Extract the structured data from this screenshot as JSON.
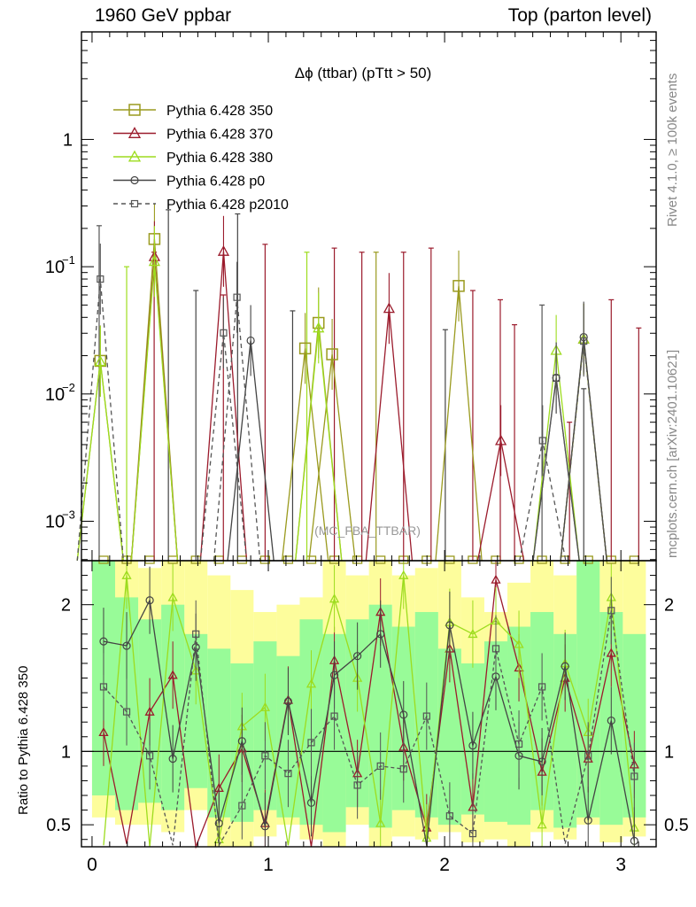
{
  "header": {
    "left": "1960 GeV ppbar",
    "right": "Top (parton level)"
  },
  "side": {
    "rivet": "Rivet 4.1.0, ≥ 100k events",
    "mcplots": "mcplots.cern.ch [arXiv:2401.10621]"
  },
  "chart_data": {
    "type": "line",
    "title": "Δϕ (ttbar) (pTtt > 50)",
    "watermark": "(MC_FBA_TTBAR)",
    "xlabel": "",
    "ylabel": "",
    "ratio_ylabel": "Ratio to Pythia 6.428 350",
    "x_range": [
      -0.06,
      3.2
    ],
    "y_range": [
      0.00049,
      7
    ],
    "y_scale": "log",
    "ratio_range": [
      0.35,
      2.3
    ],
    "x_ticks": [
      {
        "v": 0,
        "label": "0"
      },
      {
        "v": 1,
        "label": "1"
      },
      {
        "v": 2,
        "label": "2"
      },
      {
        "v": 3,
        "label": "3"
      }
    ],
    "y_ticks": [
      {
        "exp": 0,
        "label": "1"
      },
      {
        "exp": -1,
        "label": "10",
        "sup": "−1"
      },
      {
        "exp": -2,
        "label": "10",
        "sup": "−2"
      },
      {
        "exp": -3,
        "label": "10",
        "sup": "−3"
      }
    ],
    "ratio_ticks": [
      {
        "v": 0.5,
        "label": "0.5"
      },
      {
        "v": 1,
        "label": "1"
      },
      {
        "v": 2,
        "label": "2"
      }
    ],
    "legend_position": "top-left",
    "series": [
      {
        "name": "Pythia 6.428 350",
        "color": "#9a9a1e",
        "marker": "square",
        "dash": "",
        "points": [
          [
            0.047,
            0.0182
          ],
          [
            0.354,
            0.165
          ],
          [
            1.209,
            0.0228
          ],
          [
            1.285,
            0.0362
          ],
          [
            1.362,
            0.0205
          ],
          [
            2.08,
            0.0706
          ]
        ]
      },
      {
        "name": "Pythia 6.428 370",
        "color": "#9b1b2c",
        "marker": "triangle",
        "dash": "",
        "points": [
          [
            0.354,
            0.12
          ],
          [
            0.746,
            0.132
          ],
          [
            1.685,
            0.047
          ],
          [
            2.319,
            0.0043
          ],
          [
            2.789,
            0.027
          ]
        ]
      },
      {
        "name": "Pythia 6.428 380",
        "color": "#9ddc1e",
        "marker": "triangle",
        "dash": "",
        "points": [
          [
            0.047,
            0.018
          ],
          [
            0.354,
            0.11
          ],
          [
            1.285,
            0.033
          ],
          [
            2.633,
            0.022
          ],
          [
            2.789,
            0.027
          ]
        ]
      },
      {
        "name": "Pythia 6.428 p0",
        "color": "#444444",
        "marker": "circle",
        "dash": "",
        "points": [
          [
            0.9,
            0.0263
          ],
          [
            2.633,
            0.0134
          ],
          [
            2.789,
            0.028
          ]
        ]
      },
      {
        "name": "Pythia 6.428 p2010",
        "color": "#555555",
        "marker": "square-small",
        "dash": "5,4",
        "points": [
          [
            0.047,
            0.08
          ],
          [
            0.746,
            0.0302
          ],
          [
            0.822,
            0.0575
          ],
          [
            2.556,
            0.0043
          ],
          [
            2.633,
            0.0133
          ],
          [
            2.789,
            0.026
          ]
        ]
      }
    ],
    "ratio_series": [
      {
        "name": "Pythia 6.428 370",
        "values": [
          1.13,
          0.37,
          1.27,
          1.52,
          0.35,
          0.75,
          1.02,
          0.51,
          1.35,
          0.35,
          1.62,
          0.85,
          1.95,
          1.03,
          0.48,
          1.7,
          0.62,
          2.17,
          1.57,
          0.86,
          1.5,
          0.95,
          1.67,
          0.91
        ]
      },
      {
        "name": "Pythia 6.428 380",
        "values": [
          0.36,
          2.2,
          0.35,
          2.05,
          1.55,
          0.4,
          1.17,
          1.3,
          0.36,
          1.46,
          2.04,
          1.5,
          0.51,
          2.2,
          0.41,
          1.88,
          1.8,
          1.89,
          1.73,
          0.5,
          1.6,
          1.13,
          2.05,
          0.48
        ]
      },
      {
        "name": "Pythia 6.428 p0",
        "values": [
          1.75,
          1.72,
          2.03,
          0.95,
          1.71,
          0.51,
          1.07,
          0.49,
          1.34,
          0.65,
          1.52,
          1.65,
          1.8,
          1.25,
          0.36,
          1.86,
          1.04,
          1.51,
          0.97,
          0.93,
          1.58,
          0.53,
          1.21,
          0.39
        ]
      },
      {
        "name": "Pythia 6.428 p2010",
        "values": [
          1.44,
          1.27,
          0.97,
          0.36,
          1.8,
          0.36,
          0.63,
          0.97,
          0.85,
          1.06,
          1.24,
          0.77,
          0.9,
          0.88,
          1.24,
          0.56,
          0.44,
          1.7,
          1.05,
          1.44,
          0.37,
          0.97,
          1.96,
          0.83
        ]
      }
    ],
    "band_yellow": [
      [
        0.55,
        2.3
      ],
      [
        0.5,
        2.3
      ],
      [
        0.5,
        2.25
      ],
      [
        0.45,
        2.3
      ],
      [
        0.6,
        2.3
      ],
      [
        0.35,
        2.2
      ],
      [
        0.35,
        2.1
      ],
      [
        0.42,
        1.95
      ],
      [
        0.5,
        2.0
      ],
      [
        0.4,
        2.05
      ],
      [
        0.35,
        2.3
      ],
      [
        0.5,
        2.2
      ],
      [
        0.35,
        2.3
      ],
      [
        0.42,
        2.2
      ],
      [
        0.4,
        2.25
      ],
      [
        0.45,
        2.3
      ],
      [
        0.38,
        2.05
      ],
      [
        0.4,
        1.95
      ],
      [
        0.35,
        2.15
      ],
      [
        0.45,
        2.3
      ],
      [
        0.4,
        2.2
      ],
      [
        0.5,
        2.3
      ],
      [
        0.38,
        2.3
      ],
      [
        0.42,
        2.3
      ]
    ],
    "band_green": [
      [
        0.7,
        2.3
      ],
      [
        0.6,
        2.05
      ],
      [
        0.65,
        1.9
      ],
      [
        0.6,
        2.0
      ],
      [
        0.75,
        1.8
      ],
      [
        0.55,
        1.7
      ],
      [
        0.52,
        1.6
      ],
      [
        0.6,
        1.75
      ],
      [
        0.55,
        1.65
      ],
      [
        0.5,
        1.9
      ],
      [
        0.45,
        1.8
      ],
      [
        0.62,
        1.9
      ],
      [
        0.48,
        2.0
      ],
      [
        0.6,
        1.85
      ],
      [
        0.55,
        1.95
      ],
      [
        0.5,
        1.7
      ],
      [
        0.57,
        1.6
      ],
      [
        0.52,
        1.75
      ],
      [
        0.5,
        1.85
      ],
      [
        0.6,
        1.95
      ],
      [
        0.48,
        1.8
      ],
      [
        0.55,
        2.3
      ],
      [
        0.5,
        1.95
      ],
      [
        0.55,
        1.8
      ]
    ]
  }
}
